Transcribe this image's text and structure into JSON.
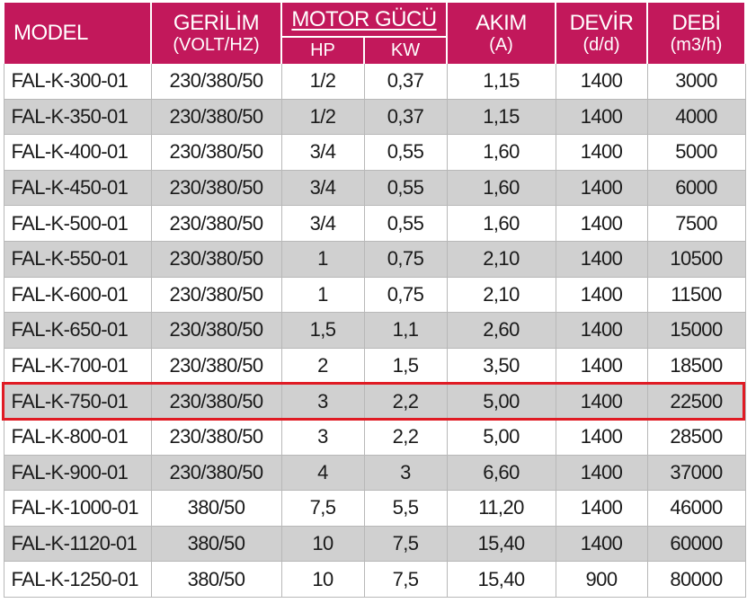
{
  "header": {
    "model": "MODEL",
    "voltage": "GERİLİM",
    "voltage_unit": "(VOLT/HZ)",
    "motor_power": "MOTOR GÜCÜ",
    "hp": "HP",
    "kw": "KW",
    "current": "AKIM",
    "current_unit": "(A)",
    "speed": "DEVİR",
    "speed_unit": "(d/d)",
    "flow": "DEBİ",
    "flow_unit": "(m3/h)"
  },
  "rows": [
    {
      "model": "FAL-K-300-01",
      "voltage": "230/380/50",
      "hp": "1/2",
      "kw": "0,37",
      "current": "1,15",
      "speed": "1400",
      "flow": "3000"
    },
    {
      "model": "FAL-K-350-01",
      "voltage": "230/380/50",
      "hp": "1/2",
      "kw": "0,37",
      "current": "1,15",
      "speed": "1400",
      "flow": "4000"
    },
    {
      "model": "FAL-K-400-01",
      "voltage": "230/380/50",
      "hp": "3/4",
      "kw": "0,55",
      "current": "1,60",
      "speed": "1400",
      "flow": "5000"
    },
    {
      "model": "FAL-K-450-01",
      "voltage": "230/380/50",
      "hp": "3/4",
      "kw": "0,55",
      "current": "1,60",
      "speed": "1400",
      "flow": "6000"
    },
    {
      "model": "FAL-K-500-01",
      "voltage": "230/380/50",
      "hp": "3/4",
      "kw": "0,55",
      "current": "1,60",
      "speed": "1400",
      "flow": "7500"
    },
    {
      "model": "FAL-K-550-01",
      "voltage": "230/380/50",
      "hp": "1",
      "kw": "0,75",
      "current": "2,10",
      "speed": "1400",
      "flow": "10500"
    },
    {
      "model": "FAL-K-600-01",
      "voltage": "230/380/50",
      "hp": "1",
      "kw": "0,75",
      "current": "2,10",
      "speed": "1400",
      "flow": "11500"
    },
    {
      "model": "FAL-K-650-01",
      "voltage": "230/380/50",
      "hp": "1,5",
      "kw": "1,1",
      "current": "2,60",
      "speed": "1400",
      "flow": "15000"
    },
    {
      "model": "FAL-K-700-01",
      "voltage": "230/380/50",
      "hp": "2",
      "kw": "1,5",
      "current": "3,50",
      "speed": "1400",
      "flow": "18500"
    },
    {
      "model": "FAL-K-750-01",
      "voltage": "230/380/50",
      "hp": "3",
      "kw": "2,2",
      "current": "5,00",
      "speed": "1400",
      "flow": "22500"
    },
    {
      "model": "FAL-K-800-01",
      "voltage": "230/380/50",
      "hp": "3",
      "kw": "2,2",
      "current": "5,00",
      "speed": "1400",
      "flow": "28500"
    },
    {
      "model": "FAL-K-900-01",
      "voltage": "230/380/50",
      "hp": "4",
      "kw": "3",
      "current": "6,60",
      "speed": "1400",
      "flow": "37000"
    },
    {
      "model": "FAL-K-1000-01",
      "voltage": "380/50",
      "hp": "7,5",
      "kw": "5,5",
      "current": "11,20",
      "speed": "1400",
      "flow": "46000"
    },
    {
      "model": "FAL-K-1120-01",
      "voltage": "380/50",
      "hp": "10",
      "kw": "7,5",
      "current": "15,40",
      "speed": "1400",
      "flow": "60000"
    },
    {
      "model": "FAL-K-1250-01",
      "voltage": "380/50",
      "hp": "10",
      "kw": "7,5",
      "current": "15,40",
      "speed": "900",
      "flow": "80000"
    }
  ],
  "highlighted_model": "FAL-K-750-01",
  "colors": {
    "header_bg": "#c2185b",
    "row_alt_bg": "#d0d0d0",
    "highlight_border": "#e01b24"
  }
}
